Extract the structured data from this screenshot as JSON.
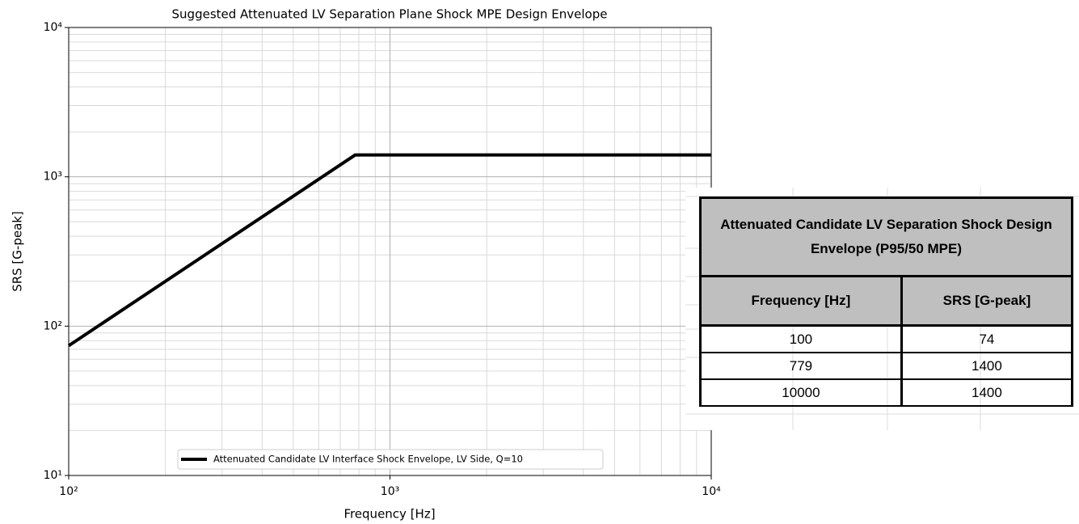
{
  "chart_data": {
    "type": "line",
    "title": "Suggested Attenuated LV Separation Plane Shock MPE Design Envelope",
    "x_label": "Frequency [Hz]",
    "y_label": "SRS [G-peak]",
    "x": [
      100,
      779,
      10000
    ],
    "series": [
      {
        "name": "Attenuated Candidate LV Interface Shock Envelope, LV Side, Q=10",
        "color": "#000000",
        "values": [
          74,
          1400,
          1400
        ]
      }
    ],
    "xlim": [
      100,
      10000
    ],
    "ylim": [
      10,
      10000
    ],
    "xticks": [
      {
        "value": 100,
        "label": "10²"
      },
      {
        "value": 1000,
        "label": "10³"
      },
      {
        "value": 10000,
        "label": "10⁴"
      }
    ],
    "yticks": [
      {
        "value": 10,
        "label": "10¹"
      },
      {
        "value": 100,
        "label": "10²"
      },
      {
        "value": 1000,
        "label": "10³"
      },
      {
        "value": 10000,
        "label": "10⁴"
      }
    ],
    "xscale": "log",
    "yscale": "log",
    "grid": true,
    "minor_grid": true,
    "legend": "lower center"
  },
  "table": {
    "title": "Attenuated Candidate LV Separation Shock Design Envelope (P95/50 MPE)",
    "columns": [
      "Frequency [Hz]",
      "SRS [G-peak]"
    ],
    "rows": [
      [
        100,
        74
      ],
      [
        779,
        1400
      ],
      [
        10000,
        1400
      ]
    ]
  }
}
